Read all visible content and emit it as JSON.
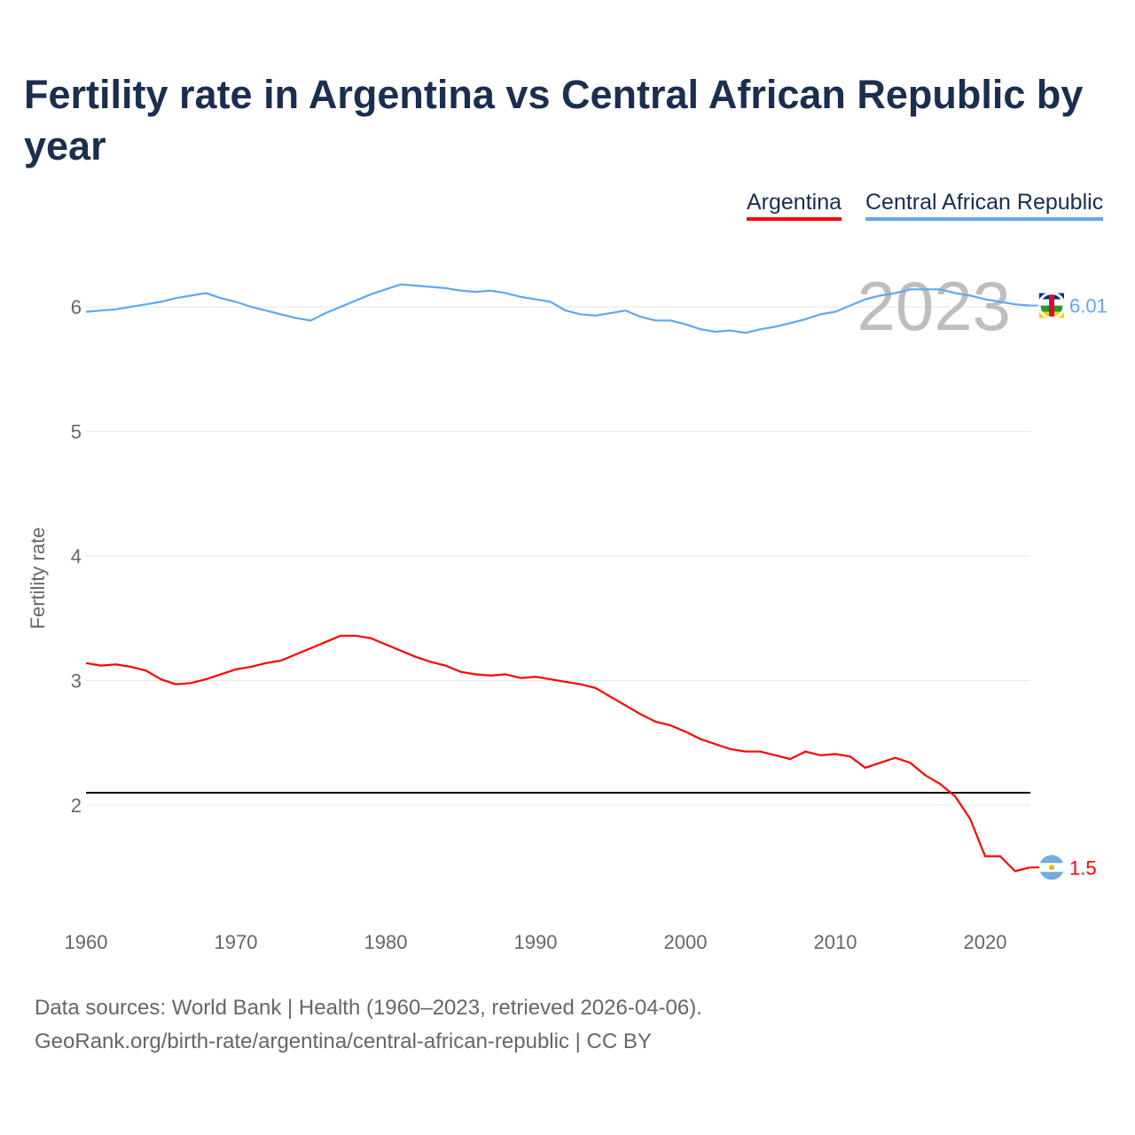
{
  "title": "Fertility rate in Argentina vs Central African Republic by year",
  "legend": [
    "Argentina",
    "Central African Republic"
  ],
  "source_line1": "Data sources: World Bank | Health (1960–2023, retrieved 2026-04-06).",
  "source_line2": "GeoRank.org/birth-rate/argentina/central-african-republic | CC BY",
  "chart_data": {
    "type": "line",
    "title": "Fertility rate in Argentina vs Central African Republic by year",
    "ylabel": "Fertility rate",
    "xlabel": "",
    "year_label": "2023",
    "xlim": [
      1960,
      2023
    ],
    "ylim": [
      1.1,
      6.45
    ],
    "xticks": [
      1960,
      1970,
      1980,
      1990,
      2000,
      2010,
      2020
    ],
    "yticks": [
      2,
      3,
      4,
      5,
      6
    ],
    "reference_line": 2.1,
    "x_start": 1960,
    "series": [
      {
        "name": "Argentina",
        "color": "#ff0000",
        "end_label": "1.5",
        "values": [
          3.14,
          3.12,
          3.13,
          3.11,
          3.08,
          3.01,
          2.97,
          2.98,
          3.01,
          3.05,
          3.09,
          3.11,
          3.14,
          3.16,
          3.21,
          3.26,
          3.31,
          3.36,
          3.36,
          3.34,
          3.29,
          3.24,
          3.19,
          3.15,
          3.12,
          3.07,
          3.05,
          3.04,
          3.05,
          3.02,
          3.03,
          3.01,
          2.99,
          2.97,
          2.94,
          2.87,
          2.8,
          2.73,
          2.67,
          2.64,
          2.59,
          2.53,
          2.49,
          2.45,
          2.43,
          2.43,
          2.4,
          2.37,
          2.43,
          2.4,
          2.41,
          2.39,
          2.3,
          2.34,
          2.38,
          2.34,
          2.24,
          2.17,
          2.07,
          1.89,
          1.59,
          1.59,
          1.47,
          1.5
        ]
      },
      {
        "name": "Central African Republic",
        "color": "#5ea8ee",
        "end_label": "6.01",
        "values": [
          5.96,
          5.97,
          5.98,
          6.0,
          6.02,
          6.04,
          6.07,
          6.09,
          6.11,
          6.07,
          6.04,
          6.0,
          5.97,
          5.94,
          5.91,
          5.89,
          5.95,
          6.0,
          6.05,
          6.1,
          6.14,
          6.18,
          6.17,
          6.16,
          6.15,
          6.13,
          6.12,
          6.13,
          6.11,
          6.08,
          6.06,
          6.04,
          5.97,
          5.94,
          5.93,
          5.95,
          5.97,
          5.92,
          5.89,
          5.89,
          5.86,
          5.82,
          5.8,
          5.81,
          5.79,
          5.82,
          5.84,
          5.87,
          5.9,
          5.94,
          5.96,
          6.01,
          6.06,
          6.09,
          6.11,
          6.14,
          6.14,
          6.14,
          6.11,
          6.09,
          6.06,
          6.04,
          6.02,
          6.01
        ]
      }
    ]
  }
}
